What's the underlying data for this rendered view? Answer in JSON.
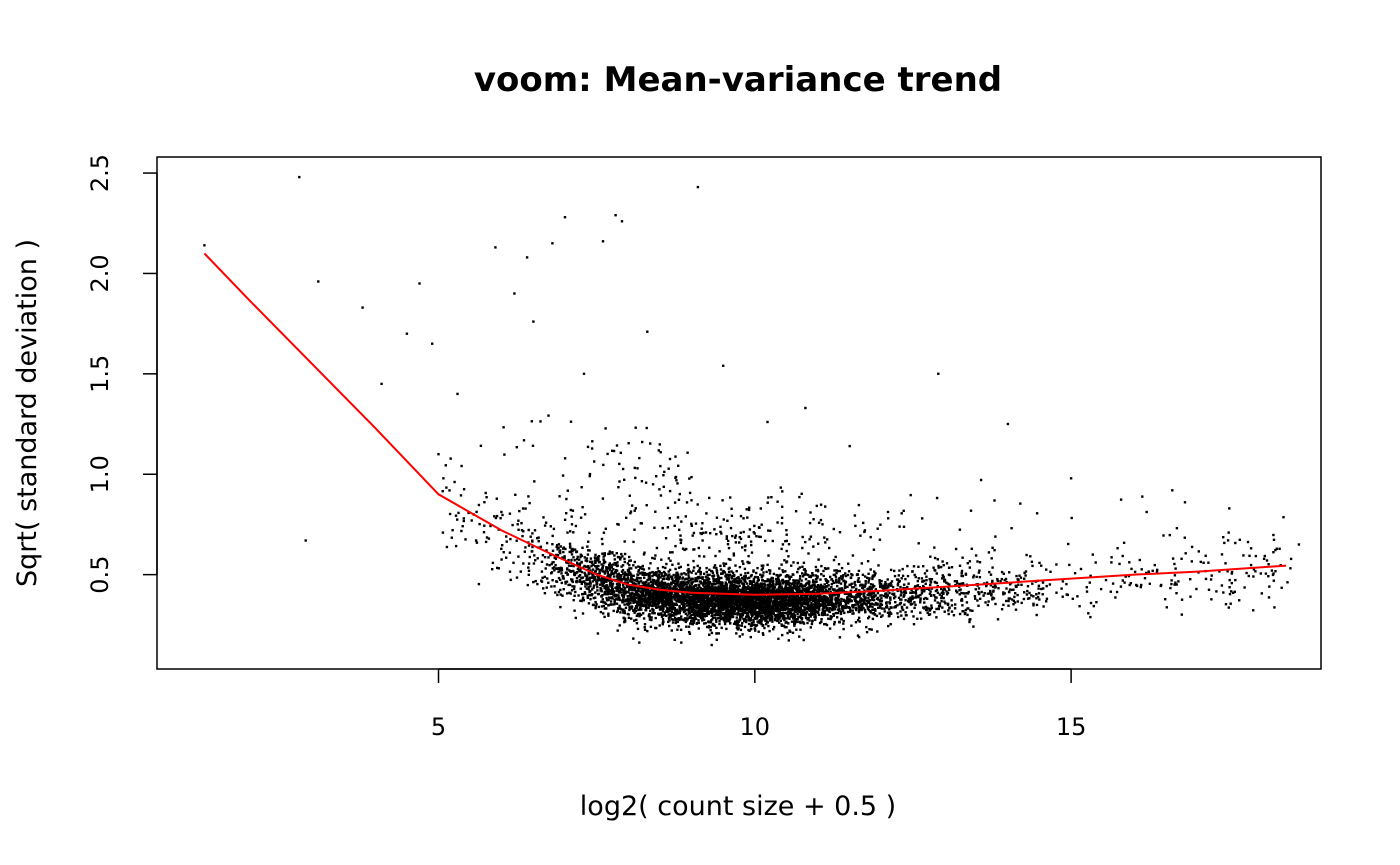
{
  "chart_data": {
    "type": "scatter",
    "title": "voom: Mean-variance trend",
    "xlabel": "log2( count size + 0.5 )",
    "ylabel": "Sqrt( standard deviation )",
    "xlim": [
      0.55,
      18.95
    ],
    "ylim": [
      0.03,
      2.58
    ],
    "x_ticks": [
      5,
      10,
      15
    ],
    "x_tick_labels": [
      "5",
      "10",
      "15"
    ],
    "y_ticks": [
      0.5,
      1.0,
      1.5,
      2.0,
      2.5
    ],
    "y_tick_labels": [
      "0.5",
      "1.0",
      "1.5",
      "2.0",
      "2.5"
    ],
    "grid": false,
    "point_color": "#000000",
    "trend_color": "#ff0000",
    "trend": {
      "name": "",
      "x": [
        1.3,
        2.0,
        3.0,
        4.0,
        5.0,
        6.0,
        6.8,
        7.5,
        8.0,
        8.5,
        9.0,
        10.0,
        11.0,
        12.0,
        13.0,
        14.0,
        15.0,
        16.0,
        17.0,
        18.4
      ],
      "y": [
        2.1,
        1.87,
        1.55,
        1.23,
        0.9,
        0.72,
        0.6,
        0.5,
        0.45,
        0.425,
        0.41,
        0.4,
        0.405,
        0.42,
        0.44,
        0.46,
        0.48,
        0.5,
        0.515,
        0.545
      ]
    },
    "outliers": {
      "x": [
        1.3,
        2.8,
        3.1,
        3.8,
        4.1,
        4.5,
        4.7,
        4.9,
        5.0,
        5.3,
        5.9,
        6.2,
        6.4,
        6.5,
        6.8,
        7.0,
        7.6,
        7.8,
        7.9,
        8.3,
        9.1,
        9.5,
        10.8,
        12.9,
        14.0,
        15.0,
        16.6,
        16.8,
        17.5,
        18.6,
        2.9,
        5.4,
        7.3,
        10.2,
        11.5
      ],
      "y": [
        2.14,
        2.48,
        1.96,
        1.83,
        1.45,
        1.7,
        1.95,
        1.65,
        1.1,
        1.4,
        2.13,
        1.9,
        2.08,
        1.76,
        2.15,
        2.28,
        2.16,
        2.29,
        2.26,
        1.71,
        2.43,
        1.54,
        1.33,
        1.5,
        1.25,
        0.98,
        0.92,
        0.86,
        0.83,
        0.65,
        0.67,
        0.78,
        1.5,
        1.26,
        1.14
      ]
    },
    "bulk": {
      "n_points": 6500,
      "x_range": [
        5.0,
        18.6
      ],
      "y_range": [
        0.13,
        1.3
      ]
    }
  }
}
